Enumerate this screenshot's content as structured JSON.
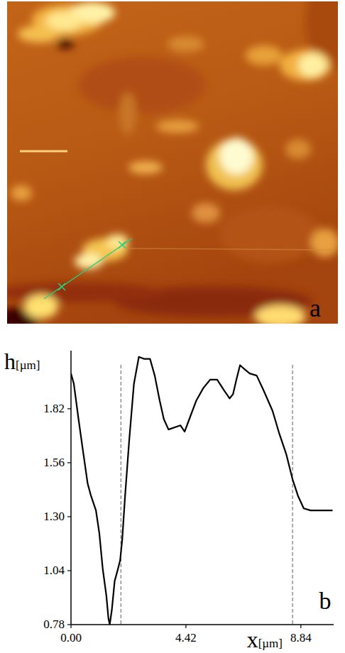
{
  "chart_data": {
    "type": "line",
    "image_label": "a",
    "panel_label": "b",
    "x_label": "x[µm]",
    "y_label": "h[µm]",
    "x": [
      0,
      0.11,
      0.29,
      0.48,
      0.64,
      0.77,
      0.96,
      1.09,
      1.22,
      1.36,
      1.44,
      1.49,
      1.57,
      1.68,
      1.81,
      1.89,
      1.97,
      2.08,
      2.24,
      2.42,
      2.61,
      2.82,
      3.04,
      3.22,
      3.41,
      3.57,
      3.75,
      4.21,
      4.37,
      4.55,
      4.82,
      5.09,
      5.35,
      5.62,
      5.88,
      6.1,
      6.23,
      6.36,
      6.5,
      6.68,
      6.87,
      7.14,
      7.4,
      7.75,
      8.01,
      8.28,
      8.52,
      8.73,
      8.95,
      9.21,
      9.48,
      9.74,
      10.06
    ],
    "values": [
      1.99,
      1.94,
      1.77,
      1.6,
      1.46,
      1.4,
      1.33,
      1.22,
      1.05,
      0.92,
      0.81,
      0.78,
      0.85,
      0.99,
      1.05,
      1.09,
      1.19,
      1.4,
      1.67,
      1.94,
      2.07,
      2.06,
      2.06,
      1.98,
      1.86,
      1.77,
      1.72,
      1.74,
      1.71,
      1.77,
      1.86,
      1.92,
      1.96,
      1.96,
      1.91,
      1.87,
      1.89,
      1.96,
      2.03,
      2.01,
      1.99,
      1.98,
      1.91,
      1.81,
      1.7,
      1.6,
      1.48,
      1.4,
      1.34,
      1.33,
      1.33,
      1.33,
      1.33
    ],
    "color": "#000000",
    "cursor_lines": [
      1.92,
      8.52
    ],
    "xlim": [
      0,
      10.1
    ],
    "ylim": [
      0.78,
      2.1
    ],
    "xticks": [
      {
        "value": 0,
        "label": "0.00"
      },
      4.42,
      8.84
    ],
    "yticks": [
      0.78,
      1.04,
      {
        "value": 1.3,
        "label": "1.30"
      },
      1.56,
      1.82
    ],
    "grid": false
  }
}
